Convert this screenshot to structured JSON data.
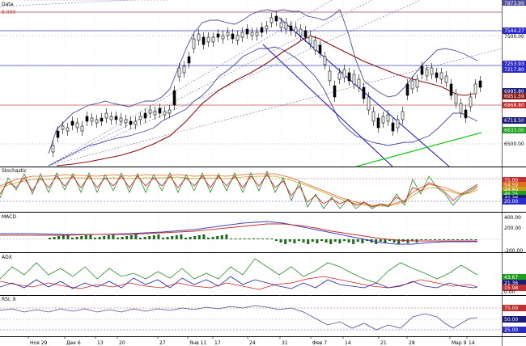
{
  "panels": {
    "main": {
      "title": "Data",
      "top_value": "7873.99",
      "left_value": "8.000",
      "price_labels": [
        {
          "text": "7544.27",
          "value": 7544.27,
          "bg": "#2b2bc8"
        },
        {
          "text": "7500.00",
          "value": 7500,
          "bg": null
        },
        {
          "text": "7253.93",
          "value": 7253.93,
          "bg": "#2b2bc8"
        },
        {
          "text": "7217.80",
          "value": 7217.8,
          "bg": "#2b2bc8"
        },
        {
          "text": "6995.80",
          "value": 6995.8,
          "bg": "#1b1b7a"
        },
        {
          "text": "6951.59",
          "value": 6951.59,
          "bg": "#8b1a1a"
        },
        {
          "text": "6868.80",
          "value": 6868.8,
          "bg": "#c03030"
        },
        {
          "text": "6719.50",
          "value": 6719.5,
          "bg": "#1b1b7a"
        },
        {
          "text": "6633.00",
          "value": 6633.0,
          "bg": "#1ea01e"
        },
        {
          "text": "6500.00",
          "value": 6500,
          "bg": null
        }
      ]
    },
    "stochastic": {
      "title": "Stochastic",
      "labels": [
        {
          "text": "75.00",
          "bg": "#c03030"
        },
        {
          "text": "54.59",
          "bg": "#e0701e"
        },
        {
          "text": "48.89",
          "bg": "#c8a020"
        },
        {
          "text": "46.25",
          "bg": "#1ea01e"
        },
        {
          "text": "40.38",
          "bg": "#1b1b7a"
        },
        {
          "text": "20.00",
          "bg": "#2b2bc8"
        }
      ]
    },
    "macd": {
      "title": "MACD",
      "labels": [
        {
          "text": "400.00",
          "bg": null
        },
        {
          "text": "200.00",
          "bg": null
        },
        {
          "text": "-200.00",
          "bg": null
        }
      ]
    },
    "adx": {
      "title": "ADX",
      "labels": [
        {
          "text": "43.67",
          "bg": "#1ea01e"
        },
        {
          "text": "21.36",
          "bg": "#1b1b7a"
        },
        {
          "text": "15.98",
          "bg": "#c03030"
        },
        {
          "text": "0.00",
          "bg": null
        }
      ]
    },
    "rsi": {
      "title": "RSI, 9",
      "labels": [
        {
          "text": "75.00",
          "bg": "#c03030"
        },
        {
          "text": "50.00",
          "bg": "#1b1b7a"
        },
        {
          "text": "25.00",
          "bg": "#2b2bc8"
        }
      ]
    }
  },
  "xaxis": {
    "labels": [
      "Ноя 29",
      "Дек 6",
      "13",
      "20",
      "27",
      "Янв 11",
      "17",
      "24",
      "31",
      "Фев 7",
      "14",
      "21",
      "28",
      "Мар 9",
      "14"
    ]
  },
  "colors": {
    "bollinger": "#4b4b9b",
    "sma": "#8b1010",
    "channel": "#1010d0",
    "support": "#22cc22",
    "resistance_red": "#c05050",
    "hline_blue": "#4040c0"
  }
}
